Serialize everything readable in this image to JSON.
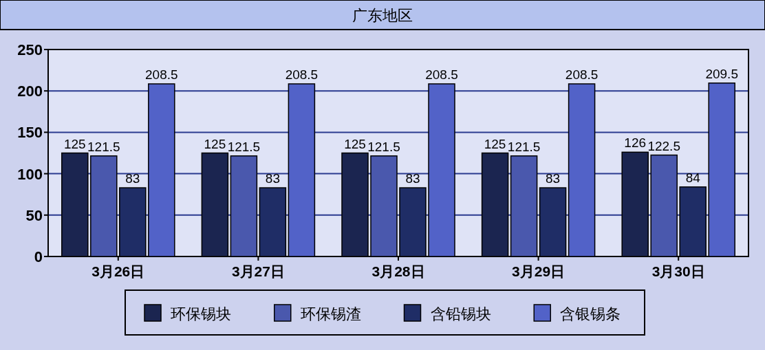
{
  "chart_data": {
    "type": "bar",
    "title": "广东地区",
    "categories": [
      "3月26日",
      "3月27日",
      "3月28日",
      "3月29日",
      "3月30日"
    ],
    "series": [
      {
        "name": "环保锡块",
        "color": "#1b2550",
        "values": [
          125,
          125,
          125,
          125,
          126
        ]
      },
      {
        "name": "环保锡渣",
        "color": "#4a58ad",
        "values": [
          121.5,
          121.5,
          121.5,
          121.5,
          122.5
        ]
      },
      {
        "name": "含铅锡块",
        "color": "#1f2d66",
        "values": [
          83,
          83,
          83,
          83,
          84
        ]
      },
      {
        "name": "含银锡条",
        "color": "#5262c8",
        "values": [
          208.5,
          208.5,
          208.5,
          208.5,
          209.5
        ]
      }
    ],
    "ylim": [
      0,
      250
    ],
    "yticks": [
      0,
      50,
      100,
      150,
      200,
      250
    ],
    "grid": "y",
    "legend": "bottom",
    "data_labels": true
  }
}
